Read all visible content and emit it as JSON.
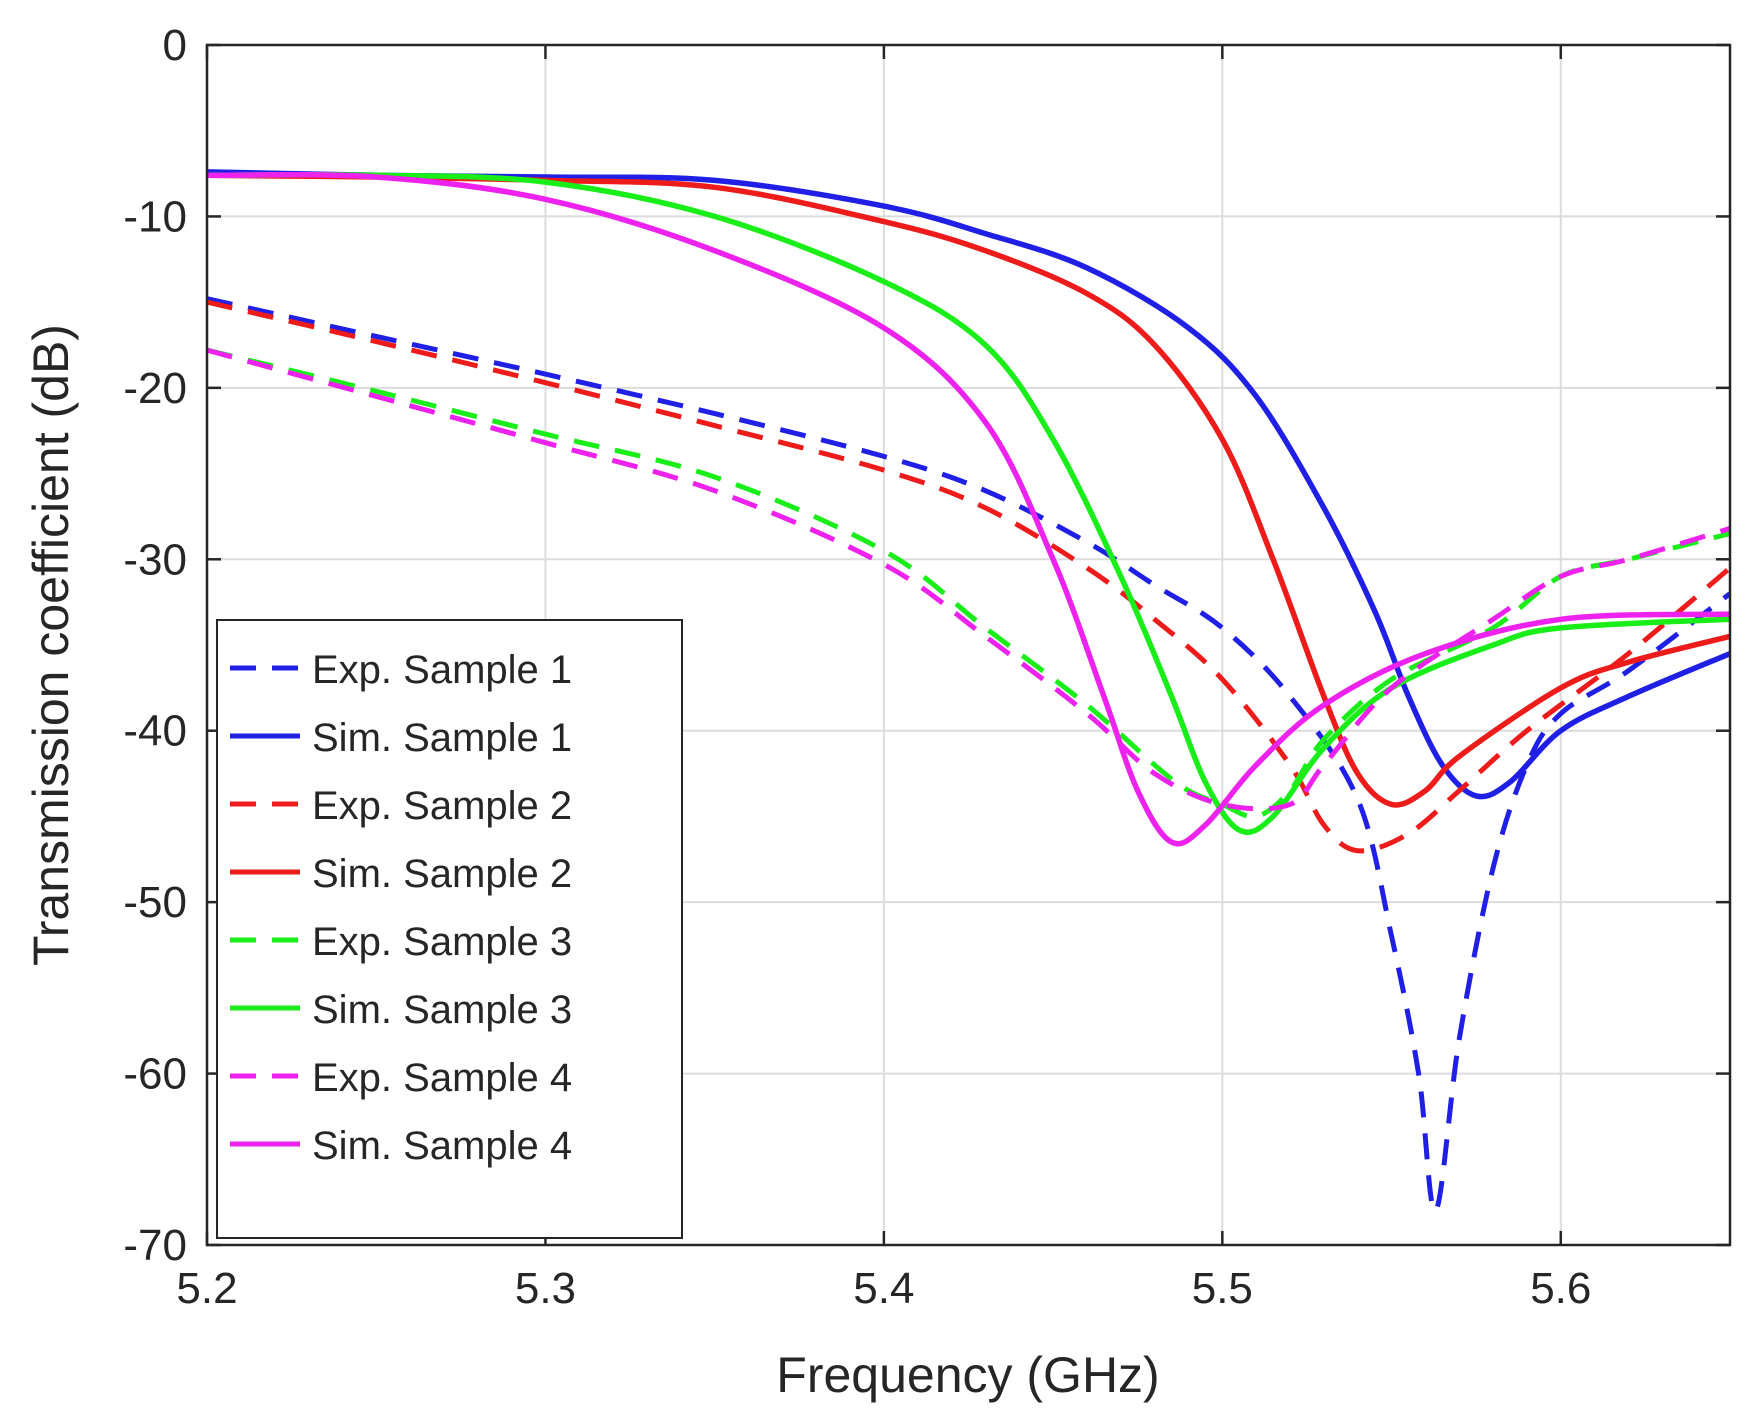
{
  "chart_data": {
    "type": "line",
    "title": "",
    "xlabel": "Frequency (GHz)",
    "ylabel": "Transmission coefficient (dB)",
    "xlim": [
      5.2,
      5.65
    ],
    "ylim": [
      -70,
      0
    ],
    "xticks": [
      5.2,
      5.3,
      5.4,
      5.5,
      5.6
    ],
    "xtick_labels": [
      "5.2",
      "5.3",
      "5.4",
      "5.5",
      "5.6"
    ],
    "yticks": [
      0,
      -10,
      -20,
      -30,
      -40,
      -50,
      -60,
      -70
    ],
    "ytick_labels": [
      "0",
      "-10",
      "-20",
      "-30",
      "-40",
      "-50",
      "-60",
      "-70"
    ],
    "grid": true,
    "legend_position": "bottom-left",
    "series": [
      {
        "name": "Exp. Sample 1",
        "color": "#1f1fe6",
        "style": "dashed",
        "points": [
          [
            5.2,
            -14.8
          ],
          [
            5.25,
            -17.0
          ],
          [
            5.3,
            -19.2
          ],
          [
            5.35,
            -21.5
          ],
          [
            5.4,
            -24.0
          ],
          [
            5.43,
            -26.0
          ],
          [
            5.46,
            -29.0
          ],
          [
            5.48,
            -31.5
          ],
          [
            5.5,
            -34.0
          ],
          [
            5.52,
            -38.0
          ],
          [
            5.54,
            -44.0
          ],
          [
            5.55,
            -52.0
          ],
          [
            5.558,
            -60.0
          ],
          [
            5.563,
            -68.0
          ],
          [
            5.57,
            -58.0
          ],
          [
            5.58,
            -48.0
          ],
          [
            5.59,
            -42.0
          ],
          [
            5.6,
            -39.0
          ],
          [
            5.62,
            -36.5
          ],
          [
            5.65,
            -32.0
          ]
        ]
      },
      {
        "name": "Sim. Sample 1",
        "color": "#1f1fe6",
        "style": "solid",
        "points": [
          [
            5.2,
            -7.4
          ],
          [
            5.25,
            -7.6
          ],
          [
            5.3,
            -7.7
          ],
          [
            5.35,
            -7.9
          ],
          [
            5.4,
            -9.4
          ],
          [
            5.43,
            -11.0
          ],
          [
            5.46,
            -13.0
          ],
          [
            5.49,
            -16.5
          ],
          [
            5.51,
            -20.5
          ],
          [
            5.53,
            -27.0
          ],
          [
            5.545,
            -33.0
          ],
          [
            5.555,
            -38.0
          ],
          [
            5.565,
            -42.0
          ],
          [
            5.575,
            -43.8
          ],
          [
            5.585,
            -43.0
          ],
          [
            5.6,
            -40.0
          ],
          [
            5.62,
            -38.0
          ],
          [
            5.65,
            -35.5
          ]
        ]
      },
      {
        "name": "Exp. Sample 2",
        "color": "#ee1b1b",
        "style": "dashed",
        "points": [
          [
            5.2,
            -15.0
          ],
          [
            5.25,
            -17.3
          ],
          [
            5.3,
            -19.7
          ],
          [
            5.35,
            -22.2
          ],
          [
            5.4,
            -24.8
          ],
          [
            5.43,
            -27.0
          ],
          [
            5.46,
            -30.5
          ],
          [
            5.48,
            -33.5
          ],
          [
            5.5,
            -37.0
          ],
          [
            5.52,
            -42.0
          ],
          [
            5.53,
            -45.5
          ],
          [
            5.54,
            -47.0
          ],
          [
            5.555,
            -46.0
          ],
          [
            5.57,
            -43.5
          ],
          [
            5.59,
            -40.0
          ],
          [
            5.62,
            -35.5
          ],
          [
            5.65,
            -30.5
          ]
        ]
      },
      {
        "name": "Sim. Sample 2",
        "color": "#ee1b1b",
        "style": "solid",
        "points": [
          [
            5.2,
            -7.6
          ],
          [
            5.25,
            -7.7
          ],
          [
            5.3,
            -7.9
          ],
          [
            5.35,
            -8.3
          ],
          [
            5.4,
            -10.3
          ],
          [
            5.43,
            -12.0
          ],
          [
            5.46,
            -14.5
          ],
          [
            5.48,
            -17.5
          ],
          [
            5.5,
            -23.0
          ],
          [
            5.515,
            -30.0
          ],
          [
            5.53,
            -38.0
          ],
          [
            5.54,
            -42.5
          ],
          [
            5.55,
            -44.3
          ],
          [
            5.56,
            -43.5
          ],
          [
            5.57,
            -41.5
          ],
          [
            5.6,
            -37.5
          ],
          [
            5.62,
            -36.0
          ],
          [
            5.65,
            -34.5
          ]
        ]
      },
      {
        "name": "Exp. Sample 3",
        "color": "#19ee19",
        "style": "dashed",
        "points": [
          [
            5.2,
            -17.8
          ],
          [
            5.25,
            -20.2
          ],
          [
            5.3,
            -22.7
          ],
          [
            5.35,
            -25.2
          ],
          [
            5.4,
            -29.5
          ],
          [
            5.43,
            -34.0
          ],
          [
            5.46,
            -38.5
          ],
          [
            5.48,
            -42.0
          ],
          [
            5.49,
            -43.5
          ],
          [
            5.5,
            -44.3
          ],
          [
            5.51,
            -45.0
          ],
          [
            5.52,
            -43.5
          ],
          [
            5.53,
            -40.5
          ],
          [
            5.55,
            -37.0
          ],
          [
            5.58,
            -34.0
          ],
          [
            5.6,
            -31.0
          ],
          [
            5.62,
            -30.0
          ],
          [
            5.65,
            -28.5
          ]
        ]
      },
      {
        "name": "Sim. Sample 3",
        "color": "#19ee19",
        "style": "solid",
        "points": [
          [
            5.2,
            -7.6
          ],
          [
            5.25,
            -7.6
          ],
          [
            5.3,
            -8.0
          ],
          [
            5.35,
            -10.0
          ],
          [
            5.4,
            -13.8
          ],
          [
            5.43,
            -17.5
          ],
          [
            5.45,
            -23.0
          ],
          [
            5.47,
            -31.0
          ],
          [
            5.485,
            -38.0
          ],
          [
            5.495,
            -43.0
          ],
          [
            5.505,
            -45.8
          ],
          [
            5.515,
            -45.0
          ],
          [
            5.53,
            -41.0
          ],
          [
            5.55,
            -37.5
          ],
          [
            5.58,
            -35.0
          ],
          [
            5.6,
            -34.0
          ],
          [
            5.65,
            -33.5
          ]
        ]
      },
      {
        "name": "Exp. Sample 4",
        "color": "#ee22ee",
        "style": "dashed",
        "points": [
          [
            5.2,
            -17.8
          ],
          [
            5.25,
            -20.5
          ],
          [
            5.3,
            -23.2
          ],
          [
            5.35,
            -26.0
          ],
          [
            5.4,
            -30.3
          ],
          [
            5.43,
            -34.5
          ],
          [
            5.46,
            -39.0
          ],
          [
            5.48,
            -42.5
          ],
          [
            5.5,
            -44.3
          ],
          [
            5.52,
            -44.3
          ],
          [
            5.53,
            -42.0
          ],
          [
            5.55,
            -37.5
          ],
          [
            5.58,
            -33.5
          ],
          [
            5.6,
            -31.0
          ],
          [
            5.62,
            -30.0
          ],
          [
            5.65,
            -28.2
          ]
        ]
      },
      {
        "name": "Sim. Sample 4",
        "color": "#ee22ee",
        "style": "solid",
        "points": [
          [
            5.2,
            -7.6
          ],
          [
            5.25,
            -7.7
          ],
          [
            5.3,
            -9.0
          ],
          [
            5.35,
            -12.0
          ],
          [
            5.4,
            -16.5
          ],
          [
            5.43,
            -22.0
          ],
          [
            5.45,
            -30.0
          ],
          [
            5.465,
            -38.0
          ],
          [
            5.475,
            -43.5
          ],
          [
            5.485,
            -46.5
          ],
          [
            5.495,
            -45.5
          ],
          [
            5.51,
            -42.0
          ],
          [
            5.53,
            -38.5
          ],
          [
            5.56,
            -35.5
          ],
          [
            5.6,
            -33.5
          ],
          [
            5.65,
            -33.2
          ]
        ]
      }
    ]
  }
}
